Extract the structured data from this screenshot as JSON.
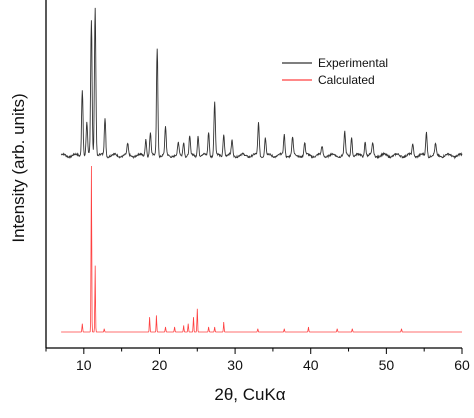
{
  "chart_data": {
    "type": "line",
    "xlabel": "2θ, CuKα",
    "ylabel": "Intensity (arb. units)",
    "xlim": [
      5,
      60
    ],
    "x_ticks": [
      10,
      20,
      30,
      40,
      50,
      60
    ],
    "y_ticks_shown": false,
    "legend_position": "top-right",
    "colors": {
      "experimental": "#333333",
      "calculated": "#ff4040",
      "axis": "#000000"
    },
    "series": [
      {
        "name": "Experimental",
        "baseline": 0.05,
        "peaks": [
          {
            "x": 9.8,
            "y": 0.45
          },
          {
            "x": 10.4,
            "y": 0.22
          },
          {
            "x": 11.0,
            "y": 0.9
          },
          {
            "x": 11.5,
            "y": 1.0
          },
          {
            "x": 12.8,
            "y": 0.25
          },
          {
            "x": 15.8,
            "y": 0.07
          },
          {
            "x": 18.2,
            "y": 0.12
          },
          {
            "x": 18.8,
            "y": 0.15
          },
          {
            "x": 19.7,
            "y": 0.72
          },
          {
            "x": 20.8,
            "y": 0.18
          },
          {
            "x": 22.5,
            "y": 0.08
          },
          {
            "x": 23.2,
            "y": 0.1
          },
          {
            "x": 24.0,
            "y": 0.12
          },
          {
            "x": 25.1,
            "y": 0.14
          },
          {
            "x": 26.5,
            "y": 0.16
          },
          {
            "x": 27.3,
            "y": 0.36
          },
          {
            "x": 28.5,
            "y": 0.15
          },
          {
            "x": 29.6,
            "y": 0.1
          },
          {
            "x": 33.1,
            "y": 0.22
          },
          {
            "x": 34.0,
            "y": 0.12
          },
          {
            "x": 36.5,
            "y": 0.14
          },
          {
            "x": 37.6,
            "y": 0.12
          },
          {
            "x": 39.2,
            "y": 0.08
          },
          {
            "x": 41.5,
            "y": 0.06
          },
          {
            "x": 44.5,
            "y": 0.15
          },
          {
            "x": 45.4,
            "y": 0.13
          },
          {
            "x": 47.2,
            "y": 0.1
          },
          {
            "x": 48.2,
            "y": 0.08
          },
          {
            "x": 53.5,
            "y": 0.08
          },
          {
            "x": 55.3,
            "y": 0.16
          },
          {
            "x": 56.5,
            "y": 0.07
          }
        ]
      },
      {
        "name": "Calculated",
        "baseline": 0.0,
        "peaks": [
          {
            "x": 9.8,
            "y": 0.05
          },
          {
            "x": 11.0,
            "y": 1.0
          },
          {
            "x": 11.5,
            "y": 0.4
          },
          {
            "x": 12.7,
            "y": 0.02
          },
          {
            "x": 18.7,
            "y": 0.09
          },
          {
            "x": 19.6,
            "y": 0.1
          },
          {
            "x": 20.8,
            "y": 0.03
          },
          {
            "x": 22.0,
            "y": 0.03
          },
          {
            "x": 23.2,
            "y": 0.04
          },
          {
            "x": 23.8,
            "y": 0.05
          },
          {
            "x": 24.5,
            "y": 0.09
          },
          {
            "x": 25.0,
            "y": 0.14
          },
          {
            "x": 26.5,
            "y": 0.03
          },
          {
            "x": 27.3,
            "y": 0.03
          },
          {
            "x": 28.5,
            "y": 0.06
          },
          {
            "x": 33.0,
            "y": 0.02
          },
          {
            "x": 36.5,
            "y": 0.02
          },
          {
            "x": 39.7,
            "y": 0.03
          },
          {
            "x": 43.5,
            "y": 0.02
          },
          {
            "x": 45.5,
            "y": 0.02
          },
          {
            "x": 52.0,
            "y": 0.02
          }
        ]
      }
    ]
  }
}
